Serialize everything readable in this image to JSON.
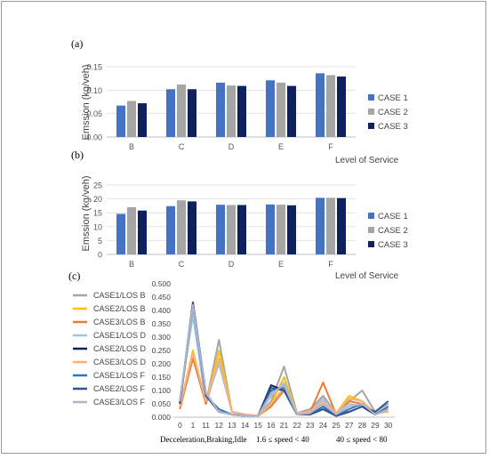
{
  "panels": [
    {
      "tag": "(a)",
      "chart_data": {
        "type": "bar",
        "categories": [
          "B",
          "C",
          "D",
          "E",
          "F"
        ],
        "series": [
          {
            "name": "CASE 1",
            "color": "#4472c4",
            "values": [
              0.067,
              0.102,
              0.116,
              0.121,
              0.136
            ]
          },
          {
            "name": "CASE 2",
            "color": "#a5a5a5",
            "values": [
              0.077,
              0.112,
              0.11,
              0.116,
              0.132
            ]
          },
          {
            "name": "CASE 3",
            "color": "#0d2160",
            "values": [
              0.072,
              0.102,
              0.109,
              0.109,
              0.129
            ]
          }
        ],
        "ylabel": "Emssion (kg/veh)",
        "xlabel": "Level of Service",
        "ylim": [
          0,
          0.15
        ],
        "yticks": [
          "0.00",
          "0.05",
          "0.10",
          "0.15"
        ],
        "grid": true,
        "legend": "right"
      }
    },
    {
      "tag": "(b)",
      "chart_data": {
        "type": "bar",
        "categories": [
          "B",
          "C",
          "D",
          "E",
          "F"
        ],
        "series": [
          {
            "name": "CASE 1",
            "color": "#4472c4",
            "values": [
              14.6,
              17.4,
              17.9,
              18.0,
              20.4
            ]
          },
          {
            "name": "CASE 2",
            "color": "#a5a5a5",
            "values": [
              17.0,
              19.5,
              17.8,
              17.9,
              20.4
            ]
          },
          {
            "name": "CASE 3",
            "color": "#0d2160",
            "values": [
              15.8,
              19.1,
              17.8,
              17.7,
              20.3
            ]
          }
        ],
        "ylabel": "Emssion (kg/veh)",
        "xlabel": "Level of Service",
        "ylim": [
          0,
          25
        ],
        "yticks": [
          "0",
          "5",
          "10",
          "15",
          "20",
          "25"
        ],
        "grid": true,
        "legend": "right"
      }
    },
    {
      "tag": "(c)",
      "chart_data": {
        "type": "line",
        "x": [
          "0",
          "1",
          "11",
          "12",
          "13",
          "14",
          "15",
          "16",
          "21",
          "22",
          "23",
          "24",
          "25",
          "27",
          "28",
          "29",
          "30"
        ],
        "ylim": [
          0,
          0.5
        ],
        "yticks": [
          "0.000",
          "0.050",
          "0.100",
          "0.150",
          "0.200",
          "0.250",
          "0.300",
          "0.350",
          "0.400",
          "0.450",
          "0.500"
        ],
        "legend": "left",
        "group_labels": [
          "Decceleration,Braking,Idle",
          "1.6 ≤ speed < 40",
          "40 ≤ speed < 80"
        ],
        "series": [
          {
            "name": "CASE1/LOS B",
            "color": "#a5a5a5",
            "values": [
              0.06,
              0.39,
              0.05,
              0.29,
              0.02,
              0.01,
              0.005,
              0.06,
              0.19,
              0.015,
              0.03,
              0.08,
              0.015,
              0.06,
              0.1,
              0.02,
              0.05
            ]
          },
          {
            "name": "CASE2/LOS B",
            "color": "#ffc000",
            "values": [
              0.04,
              0.25,
              0.05,
              0.25,
              0.02,
              0.01,
              0.005,
              0.05,
              0.15,
              0.015,
              0.02,
              0.05,
              0.015,
              0.08,
              0.06,
              0.015,
              0.02
            ]
          },
          {
            "name": "CASE3/LOS B",
            "color": "#ed7d31",
            "values": [
              0.03,
              0.22,
              0.05,
              0.21,
              0.02,
              0.01,
              0.005,
              0.04,
              0.1,
              0.015,
              0.02,
              0.13,
              0.01,
              0.06,
              0.05,
              0.01,
              0.03
            ]
          },
          {
            "name": "CASE1/LOS D",
            "color": "#9dc3e6",
            "values": [
              0.07,
              0.38,
              0.06,
              0.2,
              0.02,
              0.01,
              0.005,
              0.08,
              0.13,
              0.015,
              0.02,
              0.07,
              0.015,
              0.05,
              0.04,
              0.01,
              0.03
            ]
          },
          {
            "name": "CASE2/LOS D",
            "color": "#0d2160",
            "values": [
              0.05,
              0.43,
              0.09,
              0.02,
              0.01,
              0.005,
              0.005,
              0.12,
              0.1,
              0.01,
              0.01,
              0.03,
              0.005,
              0.02,
              0.04,
              0.01,
              0.03
            ]
          },
          {
            "name": "CASE3/LOS D",
            "color": "#f4b183",
            "values": [
              0.04,
              0.24,
              0.06,
              0.22,
              0.02,
              0.01,
              0.005,
              0.05,
              0.11,
              0.015,
              0.02,
              0.06,
              0.015,
              0.07,
              0.06,
              0.015,
              0.02
            ]
          },
          {
            "name": "CASE1/LOS F",
            "color": "#2e75b6",
            "values": [
              0.05,
              0.42,
              0.08,
              0.03,
              0.01,
              0.005,
              0.005,
              0.1,
              0.11,
              0.01,
              0.01,
              0.04,
              0.005,
              0.03,
              0.05,
              0.01,
              0.04
            ]
          },
          {
            "name": "CASE2/LOS F",
            "color": "#2f5597",
            "values": [
              0.05,
              0.43,
              0.08,
              0.02,
              0.01,
              0.005,
              0.005,
              0.11,
              0.1,
              0.01,
              0.01,
              0.03,
              0.005,
              0.02,
              0.04,
              0.02,
              0.06
            ]
          },
          {
            "name": "CASE3/LOS F",
            "color": "#b4b4c8",
            "values": [
              0.06,
              0.42,
              0.09,
              0.02,
              0.01,
              0.005,
              0.005,
              0.09,
              0.12,
              0.01,
              0.015,
              0.05,
              0.01,
              0.04,
              0.05,
              0.01,
              0.03
            ]
          }
        ]
      }
    }
  ]
}
